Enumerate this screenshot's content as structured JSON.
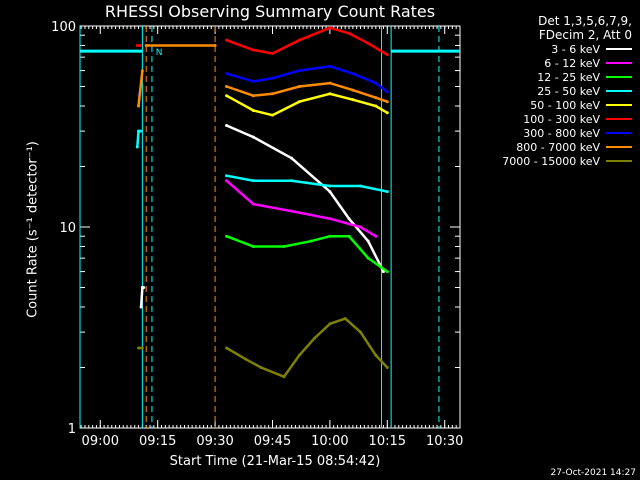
{
  "chart_data": {
    "type": "line",
    "title": "RHESSI Observing Summary Count Rates",
    "xlabel": "Start Time (21-Mar-15 08:54:42)",
    "ylabel": "Count Rate (s⁻¹ detector⁻¹)",
    "y_scale": "log",
    "ylim": [
      1,
      100
    ],
    "xlim": [
      "08:54:42",
      "10:34:00"
    ],
    "x_ticks": [
      "09:00",
      "09:15",
      "09:30",
      "09:45",
      "10:00",
      "10:15",
      "10:30"
    ],
    "y_ticks": [
      "1",
      "10",
      "100"
    ],
    "legend_header": [
      "Det 1,3,5,6,7,9,",
      "FDecim 2, Att 0"
    ],
    "legend_position": "right",
    "timestamp": "27-Oct-2021 14:27",
    "markers": [
      {
        "time": "09:12:00",
        "style": "dashed",
        "color": "#ff8c00"
      },
      {
        "time": "09:13:30",
        "style": "dashed",
        "color": "#00ffff"
      },
      {
        "time": "09:30:00",
        "style": "dashed",
        "color": "#ff8c00"
      },
      {
        "time": "10:28:30",
        "style": "dashed",
        "color": "#00ffff"
      }
    ],
    "solid_markers": [
      {
        "time": "08:54:42",
        "color": "#00ffff"
      },
      {
        "time": "09:11:00",
        "color": "#00ffff"
      },
      {
        "time": "10:13:30",
        "color": "#00ffff"
      },
      {
        "time": "10:16:00",
        "color": "#00ffff"
      }
    ],
    "annotations": [
      {
        "text": "N",
        "time": "09:14:30",
        "value": 75,
        "color": "#00ffff"
      }
    ],
    "series": [
      {
        "name": "3 - 6 keV",
        "color": "#ffffff",
        "segments": [
          {
            "x": [
              "09:10:40",
              "09:11:00",
              "09:11:20"
            ],
            "y": [
              4,
              5,
              5
            ]
          },
          {
            "x": [
              "09:33:00",
              "09:40:00",
              "09:50:00",
              "10:00:00",
              "10:05:00",
              "10:10:00",
              "10:14:00"
            ],
            "y": [
              32,
              28,
              22,
              15,
              11,
              8.5,
              6
            ]
          }
        ]
      },
      {
        "name": "6 - 12 keV",
        "color": "#ff00ff",
        "segments": [
          {
            "x": [
              "09:33:00",
              "09:40:00",
              "09:50:00",
              "10:00:00",
              "10:08:00",
              "10:12:00"
            ],
            "y": [
              17,
              13,
              12,
              11,
              10,
              9
            ]
          }
        ]
      },
      {
        "name": "12 - 25 keV",
        "color": "#00ff00",
        "segments": [
          {
            "x": [
              "09:33:00",
              "09:40:00",
              "09:48:00",
              "09:55:00",
              "10:00:00",
              "10:05:00",
              "10:10:00",
              "10:15:00"
            ],
            "y": [
              9,
              8,
              8,
              8.5,
              9,
              9,
              7,
              6
            ]
          }
        ]
      },
      {
        "name": "25 - 50 keV",
        "color": "#00ffff",
        "segments": [
          {
            "x": [
              "09:09:40",
              "09:10:00",
              "09:10:30"
            ],
            "y": [
              25,
              30,
              30
            ]
          },
          {
            "x": [
              "09:33:00",
              "09:40:00",
              "09:50:00",
              "10:00:00",
              "10:08:00",
              "10:15:00"
            ],
            "y": [
              18,
              17,
              17,
              16,
              16,
              15
            ]
          }
        ]
      },
      {
        "name": "50 - 100 keV",
        "color": "#ffff00",
        "segments": [
          {
            "x": [
              "09:33:00",
              "09:40:00",
              "09:45:00",
              "09:52:00",
              "10:00:00",
              "10:06:00",
              "10:12:00",
              "10:15:00"
            ],
            "y": [
              45,
              38,
              36,
              42,
              46,
              43,
              40,
              37
            ]
          }
        ]
      },
      {
        "name": "100 - 300 keV",
        "color": "#ff0000",
        "segments": [
          {
            "x": [
              "09:09:40",
              "09:10:30"
            ],
            "y": [
              80,
              80
            ]
          },
          {
            "x": [
              "09:33:00",
              "09:40:00",
              "09:45:00",
              "09:52:00",
              "10:00:00",
              "10:05:00",
              "10:10:00",
              "10:15:00"
            ],
            "y": [
              85,
              76,
              73,
              85,
              98,
              92,
              82,
              72
            ]
          }
        ]
      },
      {
        "name": "300 - 800 keV",
        "color": "#0000ff",
        "segments": [
          {
            "x": [
              "09:10:00",
              "09:10:30"
            ],
            "y": [
              45,
              48
            ]
          },
          {
            "x": [
              "09:33:00",
              "09:40:00",
              "09:45:00",
              "09:52:00",
              "10:00:00",
              "10:06:00",
              "10:12:00",
              "10:15:00"
            ],
            "y": [
              58,
              53,
              55,
              60,
              63,
              58,
              52,
              47
            ]
          }
        ]
      },
      {
        "name": "800 - 7000 keV",
        "color": "#ff8c00",
        "segments": [
          {
            "x": [
              "09:10:00",
              "09:11:00"
            ],
            "y": [
              40,
              60
            ]
          },
          {
            "x": [
              "09:12:00",
              "09:30:00"
            ],
            "y": [
              80,
              80
            ]
          },
          {
            "x": [
              "09:33:00",
              "09:40:00",
              "09:45:00",
              "09:52:00",
              "10:00:00",
              "10:06:00",
              "10:12:00",
              "10:15:00"
            ],
            "y": [
              50,
              45,
              46,
              50,
              52,
              48,
              44,
              42
            ]
          }
        ]
      },
      {
        "name": "7000 - 15000 keV",
        "color": "#808000",
        "segments": [
          {
            "x": [
              "09:10:00",
              "09:11:00"
            ],
            "y": [
              2.5,
              2.5
            ]
          },
          {
            "x": [
              "09:33:00",
              "09:38:00",
              "09:42:00",
              "09:48:00",
              "09:52:00",
              "09:56:00",
              "10:00:00",
              "10:04:00",
              "10:08:00",
              "10:12:00",
              "10:15:00"
            ],
            "y": [
              2.5,
              2.2,
              2,
              1.8,
              2.3,
              2.8,
              3.3,
              3.5,
              3,
              2.3,
              2
            ]
          }
        ]
      }
    ]
  }
}
